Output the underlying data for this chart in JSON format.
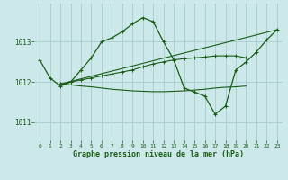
{
  "title": "Graphe pression niveau de la mer (hPa)",
  "background_color": "#cce8e8",
  "grid_color": "#aacccc",
  "line_color": "#1a5c1a",
  "xlim": [
    -0.5,
    23.5
  ],
  "ylim": [
    1010.55,
    1013.95
  ],
  "yticks": [
    1011,
    1012,
    1013
  ],
  "xticks": [
    0,
    1,
    2,
    3,
    4,
    5,
    6,
    7,
    8,
    9,
    10,
    11,
    12,
    13,
    14,
    15,
    16,
    17,
    18,
    19,
    20,
    21,
    22,
    23
  ],
  "lines": [
    {
      "x": [
        0,
        1,
        2,
        3,
        4,
        5,
        6,
        7,
        8,
        9,
        10,
        11,
        12,
        13,
        14,
        15,
        16,
        17,
        18,
        19,
        20,
        21,
        22,
        23
      ],
      "y": [
        1012.55,
        1012.1,
        1011.9,
        1012.0,
        1012.3,
        1012.6,
        1013.0,
        1013.1,
        1013.25,
        1013.45,
        1013.6,
        1013.5,
        1013.0,
        1012.55,
        1011.85,
        1011.75,
        1011.65,
        1011.2,
        1011.4,
        1012.3,
        1012.5,
        1012.75,
        1013.05,
        1013.3
      ],
      "marker": true
    },
    {
      "x": [
        2,
        23
      ],
      "y": [
        1011.95,
        1013.3
      ],
      "marker": false
    },
    {
      "x": [
        2,
        3,
        4,
        5,
        6,
        7,
        8,
        9,
        10,
        11,
        12,
        13,
        14,
        15,
        16,
        17,
        18,
        19,
        20
      ],
      "y": [
        1011.95,
        1012.0,
        1012.05,
        1012.1,
        1012.15,
        1012.2,
        1012.25,
        1012.3,
        1012.38,
        1012.45,
        1012.5,
        1012.55,
        1012.58,
        1012.6,
        1012.62,
        1012.65,
        1012.65,
        1012.65,
        1012.6
      ],
      "marker": true
    },
    {
      "x": [
        2,
        3,
        4,
        5,
        6,
        7,
        8,
        9,
        10,
        11,
        12,
        13,
        14,
        15,
        16,
        17,
        18,
        19,
        20
      ],
      "y": [
        1011.95,
        1011.93,
        1011.9,
        1011.88,
        1011.85,
        1011.82,
        1011.8,
        1011.78,
        1011.77,
        1011.76,
        1011.76,
        1011.77,
        1011.78,
        1011.8,
        1011.82,
        1011.85,
        1011.87,
        1011.88,
        1011.9
      ],
      "marker": false
    }
  ]
}
